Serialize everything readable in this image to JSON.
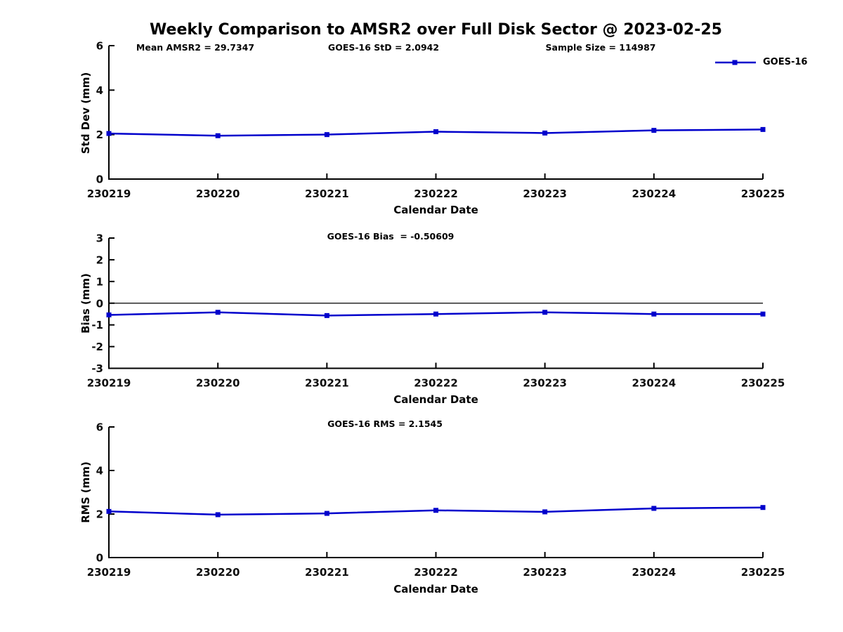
{
  "title": "Weekly Comparison to AMSR2 over Full Disk Sector @ 2023-02-25",
  "legend": {
    "label": "GOES-16",
    "marker": "filled-square",
    "position": "top-right"
  },
  "colors": {
    "series": "#0000cc",
    "axis": "#000000",
    "text": "#000000",
    "background": "#ffffff"
  },
  "chart_data": [
    {
      "type": "line",
      "name": "std-dev",
      "annotations": [
        "Mean AMSR2 = 29.7347",
        "GOES-16 StD = 2.0942",
        "Sample Size = 114987"
      ],
      "xlabel": "Calendar Date",
      "ylabel": "Std Dev (mm)",
      "categories": [
        "230219",
        "230220",
        "230221",
        "230222",
        "230223",
        "230224",
        "230225"
      ],
      "series": [
        {
          "name": "GOES-16",
          "values": [
            2.05,
            1.95,
            2.0,
            2.13,
            2.07,
            2.19,
            2.23
          ]
        }
      ],
      "ylim": [
        0,
        6
      ],
      "yticks": [
        0,
        2,
        4,
        6
      ],
      "zero_line": false,
      "grid": false,
      "legend_visible": true
    },
    {
      "type": "line",
      "name": "bias",
      "annotations": [
        "GOES-16 Bias  = -0.50609"
      ],
      "xlabel": "Calendar Date",
      "ylabel": "Bias (mm)",
      "categories": [
        "230219",
        "230220",
        "230221",
        "230222",
        "230223",
        "230224",
        "230225"
      ],
      "series": [
        {
          "name": "GOES-16",
          "values": [
            -0.54,
            -0.42,
            -0.57,
            -0.5,
            -0.42,
            -0.5,
            -0.5
          ]
        }
      ],
      "ylim": [
        -3,
        3
      ],
      "yticks": [
        -3,
        -2,
        -1,
        0,
        1,
        2,
        3
      ],
      "zero_line": true,
      "grid": false,
      "legend_visible": false
    },
    {
      "type": "line",
      "name": "rms",
      "annotations": [
        "GOES-16 RMS = 2.1545"
      ],
      "xlabel": "Calendar Date",
      "ylabel": "RMS (mm)",
      "categories": [
        "230219",
        "230220",
        "230221",
        "230222",
        "230223",
        "230224",
        "230225"
      ],
      "series": [
        {
          "name": "GOES-16",
          "values": [
            2.12,
            1.97,
            2.03,
            2.17,
            2.1,
            2.26,
            2.3
          ]
        }
      ],
      "ylim": [
        0,
        6
      ],
      "yticks": [
        0,
        2,
        4,
        6
      ],
      "zero_line": false,
      "grid": false,
      "legend_visible": false
    }
  ]
}
